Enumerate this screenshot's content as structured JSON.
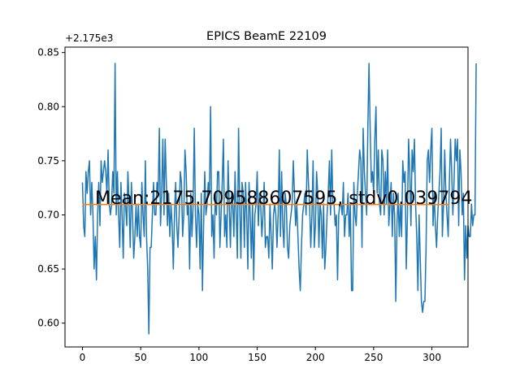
{
  "chart_data": {
    "type": "line",
    "title": "EPICS BeamE 22109",
    "offset_label": "+2.175e3",
    "annotation": "Mean:2175.709588607595, stdv0.039794",
    "xlabel": "",
    "ylabel": "",
    "xlim": [
      -15,
      331
    ],
    "ylim": [
      0.578,
      0.855
    ],
    "xticks": [
      0,
      50,
      100,
      150,
      200,
      250,
      300
    ],
    "xtick_labels": [
      "0",
      "50",
      "100",
      "150",
      "200",
      "250",
      "300"
    ],
    "yticks": [
      0.6,
      0.65,
      0.7,
      0.75,
      0.8,
      0.85
    ],
    "ytick_labels": [
      "0.60",
      "0.65",
      "0.70",
      "0.75",
      "0.80",
      "0.85"
    ],
    "grid": false,
    "series": [
      {
        "color": "#1f77b4",
        "x_start": 0,
        "values": [
          0.73,
          0.69,
          0.68,
          0.74,
          0.72,
          0.74,
          0.75,
          0.7,
          0.73,
          0.7,
          0.65,
          0.68,
          0.64,
          0.7,
          0.73,
          0.69,
          0.75,
          0.73,
          0.74,
          0.75,
          0.74,
          0.72,
          0.76,
          0.71,
          0.7,
          0.71,
          0.74,
          0.72,
          0.84,
          0.7,
          0.74,
          0.7,
          0.67,
          0.73,
          0.7,
          0.66,
          0.72,
          0.71,
          0.69,
          0.74,
          0.71,
          0.67,
          0.73,
          0.7,
          0.66,
          0.68,
          0.71,
          0.68,
          0.71,
          0.68,
          0.67,
          0.73,
          0.7,
          0.68,
          0.75,
          0.68,
          0.65,
          0.59,
          0.67,
          0.67,
          0.7,
          0.73,
          0.7,
          0.7,
          0.73,
          0.72,
          0.78,
          0.69,
          0.72,
          0.77,
          0.7,
          0.77,
          0.73,
          0.69,
          0.72,
          0.68,
          0.71,
          0.69,
          0.65,
          0.7,
          0.73,
          0.69,
          0.67,
          0.7,
          0.74,
          0.73,
          0.68,
          0.7,
          0.76,
          0.74,
          0.7,
          0.71,
          0.65,
          0.72,
          0.68,
          0.71,
          0.78,
          0.7,
          0.67,
          0.71,
          0.7,
          0.65,
          0.72,
          0.63,
          0.69,
          0.74,
          0.7,
          0.71,
          0.73,
          0.72,
          0.8,
          0.68,
          0.7,
          0.66,
          0.72,
          0.7,
          0.74,
          0.74,
          0.67,
          0.7,
          0.73,
          0.77,
          0.68,
          0.7,
          0.67,
          0.75,
          0.71,
          0.67,
          0.72,
          0.71,
          0.68,
          0.74,
          0.7,
          0.66,
          0.78,
          0.71,
          0.66,
          0.73,
          0.72,
          0.67,
          0.73,
          0.7,
          0.65,
          0.73,
          0.7,
          0.66,
          0.71,
          0.64,
          0.7,
          0.71,
          0.74,
          0.69,
          0.72,
          0.71,
          0.68,
          0.7,
          0.73,
          0.67,
          0.68,
          0.68,
          0.66,
          0.71,
          0.68,
          0.65,
          0.7,
          0.71,
          0.7,
          0.67,
          0.7,
          0.76,
          0.68,
          0.74,
          0.69,
          0.67,
          0.72,
          0.71,
          0.67,
          0.66,
          0.69,
          0.7,
          0.71,
          0.75,
          0.72,
          0.69,
          0.71,
          0.68,
          0.65,
          0.63,
          0.67,
          0.7,
          0.71,
          0.72,
          0.7,
          0.76,
          0.73,
          0.71,
          0.67,
          0.7,
          0.75,
          0.67,
          0.69,
          0.74,
          0.72,
          0.67,
          0.71,
          0.7,
          0.66,
          0.71,
          0.65,
          0.67,
          0.7,
          0.72,
          0.75,
          0.7,
          0.76,
          0.71,
          0.71,
          0.69,
          0.7,
          0.64,
          0.7,
          0.71,
          0.71,
          0.7,
          0.73,
          0.68,
          0.7,
          0.7,
          0.72,
          0.68,
          0.71,
          0.63,
          0.63,
          0.73,
          0.7,
          0.69,
          0.72,
          0.74,
          0.76,
          0.75,
          0.67,
          0.78,
          0.74,
          0.72,
          0.7,
          0.78,
          0.84,
          0.78,
          0.73,
          0.74,
          0.72,
          0.77,
          0.8,
          0.72,
          0.76,
          0.71,
          0.7,
          0.76,
          0.75,
          0.7,
          0.74,
          0.71,
          0.76,
          0.69,
          0.71,
          0.73,
          0.68,
          0.72,
          0.7,
          0.62,
          0.69,
          0.72,
          0.68,
          0.71,
          0.68,
          0.75,
          0.73,
          0.74,
          0.65,
          0.7,
          0.77,
          0.74,
          0.69,
          0.76,
          0.74,
          0.77,
          0.71,
          0.68,
          0.63,
          0.7,
          0.66,
          0.62,
          0.61,
          0.62,
          0.62,
          0.67,
          0.75,
          0.76,
          0.73,
          0.76,
          0.78,
          0.69,
          0.72,
          0.69,
          0.67,
          0.7,
          0.72,
          0.74,
          0.78,
          0.68,
          0.71,
          0.76,
          0.72,
          0.7,
          0.68,
          0.73,
          0.77,
          0.74,
          0.7,
          0.73,
          0.77,
          0.75,
          0.77,
          0.69,
          0.76,
          0.74,
          0.7,
          0.72,
          0.64,
          0.69,
          0.66,
          0.69,
          0.68,
          0.68,
          0.71,
          0.69,
          0.7,
          0.7,
          0.84
        ]
      },
      {
        "color": "#ff7f0e",
        "x": [
          0,
          315
        ],
        "values": [
          0.709588607595,
          0.709588607595
        ]
      }
    ]
  }
}
